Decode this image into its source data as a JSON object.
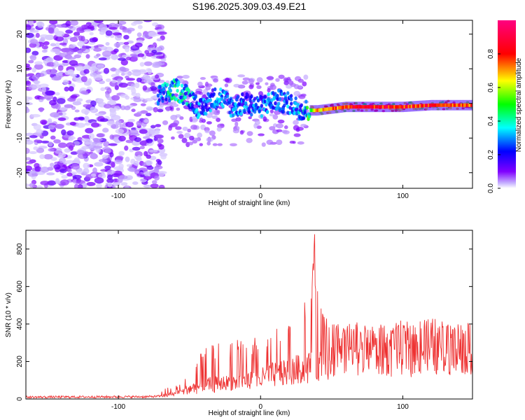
{
  "figure_title": "S196.2025.309.03.49.E21",
  "chart_data": [
    {
      "type": "heatmap",
      "title": "S196.2025.309.03.49.E21",
      "xlabel": "Height of straight line (km)",
      "ylabel": "Frequency (Hz)",
      "xlim": [
        -165,
        149
      ],
      "ylim": [
        -24.5,
        24
      ],
      "xticks": [
        -100,
        0,
        100
      ],
      "yticks": [
        -20,
        -10,
        0,
        10,
        20
      ],
      "colorbar": {
        "label": "Normalized spectral amplitude",
        "range": [
          0,
          1
        ],
        "ticks": [
          0.0,
          0.2,
          0.4,
          0.6,
          0.8
        ],
        "colormap": [
          "#ffffff",
          "#8000ff",
          "#0000ff",
          "#00ffff",
          "#00ff00",
          "#ffff00",
          "#ff0000",
          "#ff0080"
        ]
      },
      "ridge": {
        "x": [
          -72,
          -60,
          -50,
          -42,
          -35,
          -28,
          -20,
          -10,
          0,
          10,
          20,
          30,
          40,
          60,
          80,
          100,
          120,
          149
        ],
        "frequency": [
          2,
          4,
          2,
          -2,
          1,
          2,
          -1,
          0,
          -1,
          1,
          0,
          -2,
          -2,
          -1,
          -1,
          -1,
          -0.5,
          -0.5
        ],
        "amplitude": [
          0.3,
          0.45,
          0.35,
          0.3,
          0.3,
          0.3,
          0.3,
          0.3,
          0.3,
          0.3,
          0.3,
          0.35,
          0.8,
          0.9,
          0.95,
          0.9,
          0.9,
          0.9
        ]
      }
    },
    {
      "type": "line",
      "xlabel": "Height of straight line (km)",
      "ylabel": "SNR (10 * v/v)",
      "xlim": [
        -165,
        149
      ],
      "ylim": [
        0,
        900
      ],
      "xticks": [
        -100,
        0,
        100
      ],
      "yticks": [
        0,
        200,
        400,
        600,
        800
      ],
      "line_color": "#ee3333",
      "envelope": {
        "x": [
          -165,
          -80,
          -70,
          -60,
          -50,
          -40,
          -30,
          -20,
          -10,
          0,
          10,
          20,
          30,
          35,
          38,
          40,
          50,
          60,
          70,
          80,
          100,
          120,
          149
        ],
        "baseline": [
          10,
          12,
          15,
          30,
          60,
          80,
          90,
          100,
          110,
          120,
          150,
          170,
          190,
          200,
          210,
          220,
          250,
          300,
          290,
          290,
          300,
          300,
          310
        ],
        "peak": [
          30,
          35,
          45,
          80,
          130,
          270,
          300,
          320,
          350,
          330,
          380,
          400,
          520,
          680,
          880,
          580,
          430,
          400,
          420,
          400,
          420,
          430,
          410
        ]
      }
    }
  ]
}
